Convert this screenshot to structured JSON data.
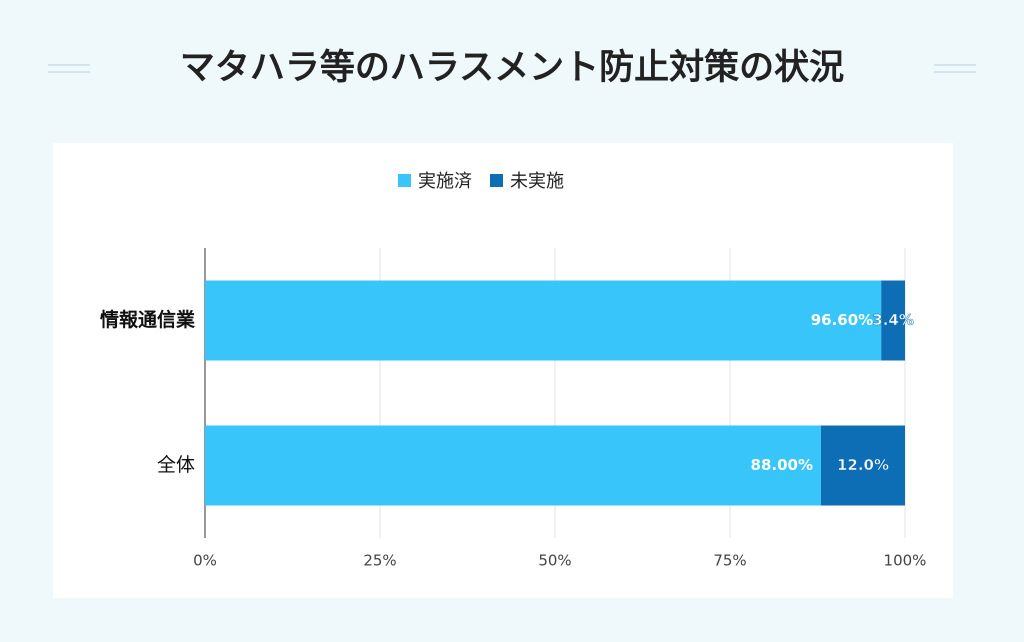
{
  "chart_data": {
    "type": "bar",
    "orientation": "horizontal",
    "stacked": true,
    "title": "マタハラ等のハラスメント防止対策の状況",
    "categories": [
      "情報通信業",
      "全体"
    ],
    "series": [
      {
        "name": "実施済",
        "color": "#38c5f9",
        "values": [
          96.6,
          88.0
        ],
        "value_labels": [
          "96.60%",
          "88.00%"
        ]
      },
      {
        "name": "未実施",
        "color": "#0d6db5",
        "values": [
          3.4,
          12.0
        ],
        "value_labels": [
          "3.4%",
          "12.0%"
        ]
      }
    ],
    "xlim": [
      0,
      100
    ],
    "xticks": [
      {
        "value": 0,
        "label": "0%"
      },
      {
        "value": 25,
        "label": "25%"
      },
      {
        "value": 50,
        "label": "50%"
      },
      {
        "value": 75,
        "label": "75%"
      },
      {
        "value": 100,
        "label": "100%"
      }
    ],
    "grid": true,
    "legend": "top"
  }
}
